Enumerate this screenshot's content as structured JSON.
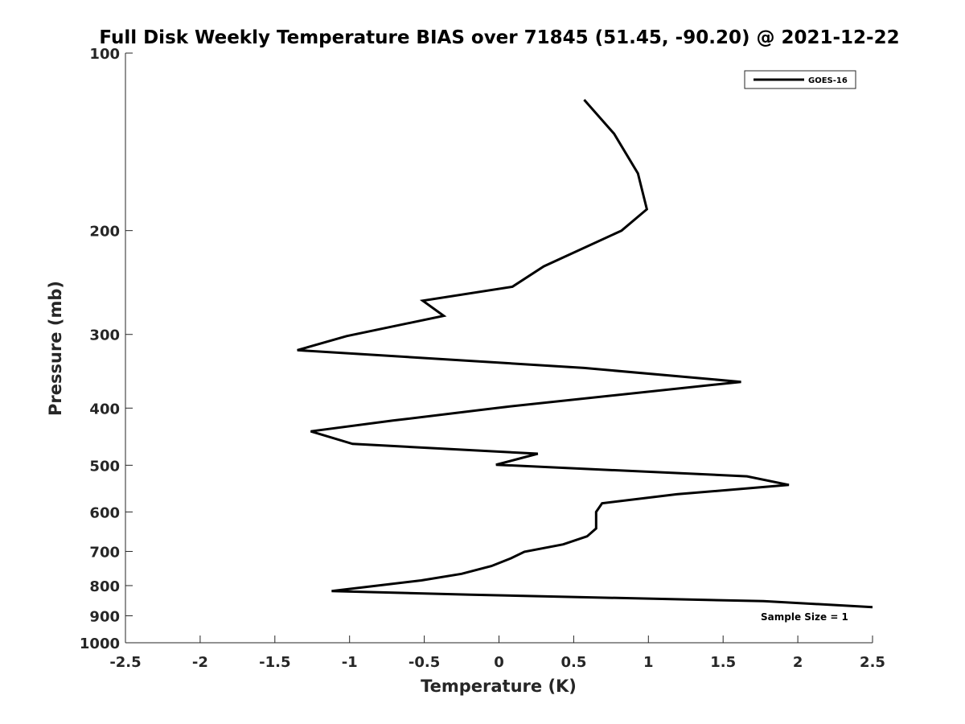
{
  "chart_data": {
    "type": "line",
    "title": "Full Disk Weekly Temperature BIAS over 71845 (51.45, -90.20) @ 2021-12-22",
    "xlabel": "Temperature (K)",
    "ylabel": "Pressure (mb)",
    "xlim": [
      -2.5,
      2.5
    ],
    "ylim": [
      100,
      1000
    ],
    "y_scale": "log",
    "y_reversed": true,
    "grid": false,
    "x_ticks": [
      "-2.5",
      "-2",
      "-1.5",
      "-1",
      "-0.5",
      "0",
      "0.5",
      "1",
      "1.5",
      "2",
      "2.5"
    ],
    "x_tick_values": [
      -2.5,
      -2,
      -1.5,
      -1,
      -0.5,
      0,
      0.5,
      1,
      1.5,
      2,
      2.5
    ],
    "y_ticks": [
      "100",
      "200",
      "300",
      "400",
      "500",
      "600",
      "700",
      "800",
      "900",
      "1000"
    ],
    "y_tick_values": [
      100,
      200,
      300,
      400,
      500,
      600,
      700,
      800,
      900,
      1000
    ],
    "legend_position": "top-right",
    "series": [
      {
        "name": "GOES-16",
        "color": "#000000",
        "points": [
          {
            "x": 0.57,
            "p": 120
          },
          {
            "x": 0.77,
            "p": 137
          },
          {
            "x": 0.93,
            "p": 160
          },
          {
            "x": 0.99,
            "p": 184
          },
          {
            "x": 0.82,
            "p": 200
          },
          {
            "x": 0.3,
            "p": 230
          },
          {
            "x": 0.09,
            "p": 249
          },
          {
            "x": -0.51,
            "p": 263
          },
          {
            "x": -0.37,
            "p": 279
          },
          {
            "x": -1.02,
            "p": 302
          },
          {
            "x": -1.35,
            "p": 319
          },
          {
            "x": 0.57,
            "p": 342
          },
          {
            "x": 1.62,
            "p": 361
          },
          {
            "x": 0.05,
            "p": 398
          },
          {
            "x": -0.71,
            "p": 420
          },
          {
            "x": -1.26,
            "p": 438
          },
          {
            "x": -0.98,
            "p": 460
          },
          {
            "x": 0.26,
            "p": 478
          },
          {
            "x": -0.02,
            "p": 499
          },
          {
            "x": 1.66,
            "p": 522
          },
          {
            "x": 1.94,
            "p": 540
          },
          {
            "x": 1.19,
            "p": 560
          },
          {
            "x": 0.69,
            "p": 580
          },
          {
            "x": 0.65,
            "p": 600
          },
          {
            "x": 0.65,
            "p": 620
          },
          {
            "x": 0.65,
            "p": 640
          },
          {
            "x": 0.59,
            "p": 660
          },
          {
            "x": 0.43,
            "p": 681
          },
          {
            "x": 0.17,
            "p": 701
          },
          {
            "x": 0.08,
            "p": 719
          },
          {
            "x": -0.05,
            "p": 741
          },
          {
            "x": -0.25,
            "p": 764
          },
          {
            "x": -0.52,
            "p": 784
          },
          {
            "x": -1.12,
            "p": 817
          },
          {
            "x": -0.19,
            "p": 829
          },
          {
            "x": 1.77,
            "p": 850
          },
          {
            "x": 2.5,
            "p": 870
          }
        ]
      }
    ],
    "annotations": [
      {
        "text": "Sample Size = 1",
        "position": "bottom-right"
      }
    ]
  }
}
